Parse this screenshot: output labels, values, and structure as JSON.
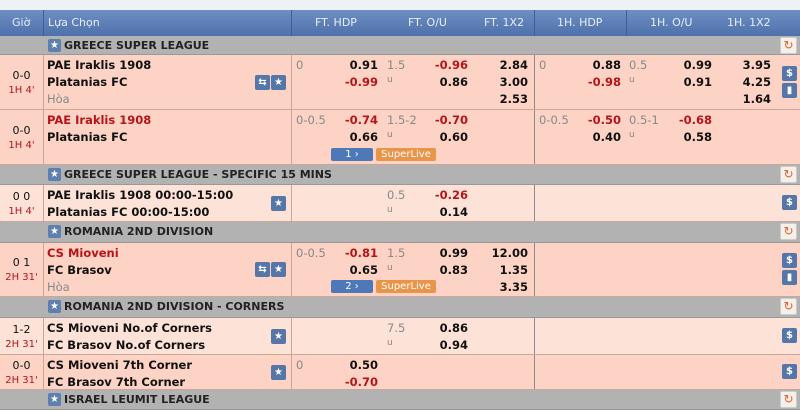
{
  "header": {
    "columns": [
      "Giờ",
      "Lựa Chọn",
      "FT. HDP",
      "FT. O/U",
      "FT. 1X2",
      "1H. HDP",
      "1H. O/U",
      "1H. 1X2"
    ]
  },
  "colors": {
    "header": "#5a7cb5",
    "league_row": "#b2b2b2",
    "match_row": "#fcd3c4",
    "match_row_light": "#fde2d8",
    "negative": "#b5141a",
    "superlive": "#e8954a"
  },
  "rows": [
    {
      "type": "league",
      "name": "GREECE SUPER LEAGUE",
      "refresh": true
    },
    {
      "type": "match",
      "bg": "dark",
      "score": "0-0",
      "time": "1H 4'",
      "home": "PAE Iraklis 1908",
      "away": "Platanias FC",
      "draw": "Hòa",
      "home_red": false,
      "icons": [
        "pitch-icon",
        "star-icon"
      ],
      "ft_hdp": {
        "line": "0",
        "home": "0.91",
        "away": "-0.99"
      },
      "ft_ou": {
        "line": "1.5",
        "under_label": "u",
        "over": "-0.96",
        "under": "0.86"
      },
      "ft_1x2": [
        "2.84",
        "3.00",
        "2.53"
      ],
      "h1_hdp": {
        "line": "0",
        "home": "0.88",
        "away": "-0.98"
      },
      "h1_ou": {
        "line": "0.5",
        "under_label": "u",
        "over": "0.99",
        "under": "0.91"
      },
      "h1_1x2": [
        "3.95",
        "4.25",
        "1.64"
      ],
      "side": [
        "dollar-icon",
        "chart-icon"
      ]
    },
    {
      "type": "match",
      "bg": "dark",
      "score": "0-0",
      "time": "1H 4'",
      "home": "PAE Iraklis 1908",
      "away": "Platanias FC",
      "home_red": true,
      "icons": [],
      "ft_hdp": {
        "line": "0-0.5",
        "home": "-0.74",
        "away": "0.66"
      },
      "ft_ou": {
        "line": "1.5-2",
        "under_label": "u",
        "over": "-0.70",
        "under": "0.60"
      },
      "h1_hdp": {
        "line": "0-0.5",
        "home": "-0.50",
        "away": "0.40"
      },
      "h1_ou": {
        "line": "0.5-1",
        "under_label": "u",
        "over": "-0.68",
        "under": "0.58"
      },
      "page": "1  ›",
      "superlive": "SuperLive",
      "side": []
    },
    {
      "type": "league",
      "name": "GREECE SUPER LEAGUE - SPECIFIC 15 MINS",
      "refresh": true
    },
    {
      "type": "match",
      "bg": "light",
      "score": "0 0",
      "time": "1H 4'",
      "home": "PAE Iraklis 1908 00:00-15:00",
      "away": "Platanias FC 00:00-15:00",
      "home_red": false,
      "icons": [
        "star-icon"
      ],
      "ft_ou": {
        "line": "0.5",
        "under_label": "u",
        "over": "-0.26",
        "under": "0.14"
      },
      "side": [
        "dollar-icon"
      ]
    },
    {
      "type": "league",
      "name": "ROMANIA 2ND DIVISION",
      "refresh": true
    },
    {
      "type": "match",
      "bg": "dark",
      "score": "0 1",
      "time": "2H 31'",
      "home": "CS Mioveni",
      "away": "FC Brasov",
      "draw": "Hòa",
      "home_red": true,
      "icons": [
        "pitch-icon",
        "star-icon"
      ],
      "ft_hdp": {
        "line": "0-0.5",
        "home": "-0.81",
        "away": "0.65"
      },
      "ft_ou": {
        "line": "1.5",
        "under_label": "u",
        "over": "0.99",
        "under": "0.83"
      },
      "ft_1x2": [
        "12.00",
        "1.35",
        "3.35"
      ],
      "page": "2  ›",
      "superlive": "SuperLive",
      "side": [
        "dollar-icon",
        "chart-icon"
      ]
    },
    {
      "type": "league",
      "name": "ROMANIA 2ND DIVISION - CORNERS",
      "refresh": true
    },
    {
      "type": "match",
      "bg": "light",
      "score": "1-2",
      "time": "2H 31'",
      "home": "CS Mioveni No.of Corners",
      "away": "FC Brasov No.of Corners",
      "home_red": false,
      "icons": [
        "star-icon"
      ],
      "ft_ou": {
        "line": "7.5",
        "under_label": "u",
        "over": "0.86",
        "under": "0.94"
      },
      "side": [
        "dollar-icon"
      ]
    },
    {
      "type": "match",
      "bg": "dark",
      "score": "0-0",
      "time": "2H 31'",
      "home": "CS Mioveni 7th Corner",
      "away": "FC Brasov 7th Corner",
      "home_red": false,
      "icons": [
        "star-icon"
      ],
      "ft_hdp": {
        "line": "0",
        "home": "0.50",
        "away": "-0.70"
      },
      "side": [
        "dollar-icon"
      ]
    },
    {
      "type": "league",
      "name": "ISRAEL LEUMIT LEAGUE",
      "refresh": true
    }
  ]
}
